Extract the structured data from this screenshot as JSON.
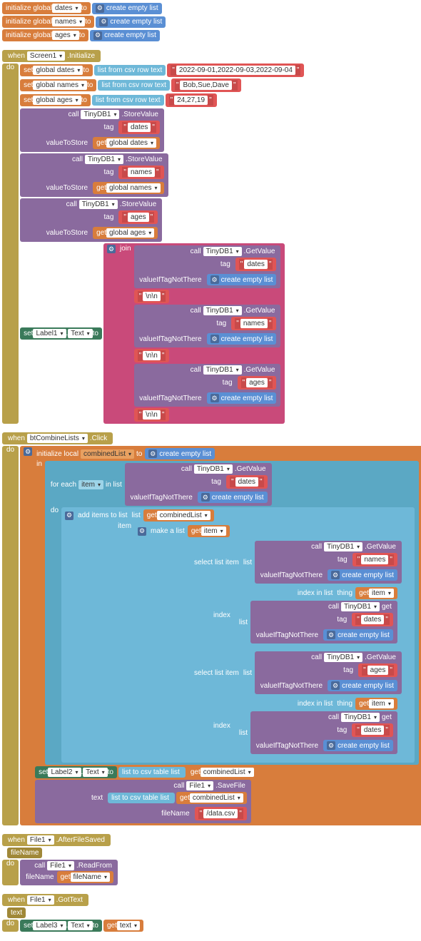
{
  "globals": [
    {
      "name": "dates",
      "to": "to",
      "init": "create empty list"
    },
    {
      "name": "names",
      "to": "to",
      "init": "create empty list"
    },
    {
      "name": "ages",
      "to": "to",
      "init": "create empty list"
    }
  ],
  "init": {
    "when": "when",
    "screen": "Screen1",
    "initialize": ".Initialize",
    "do": "do",
    "sets": [
      {
        "var": "global dates",
        "to": "to",
        "fn": "list from csv row text",
        "val": "2022-09-01,2022-09-03,2022-09-04"
      },
      {
        "var": "global names",
        "to": "to",
        "fn": "list from csv row text",
        "val": "Bob,Sue,Dave"
      },
      {
        "var": "global ages",
        "to": "to",
        "fn": "list from csv row text",
        "val": "24,27,19"
      }
    ],
    "stores": [
      {
        "call": "call",
        "db": "TinyDB1",
        "store": ".StoreValue",
        "tag": "dates",
        "get": "get",
        "var": "global dates"
      },
      {
        "call": "call",
        "db": "TinyDB1",
        "store": ".StoreValue",
        "tag": "names",
        "get": "get",
        "var": "global names"
      },
      {
        "call": "call",
        "db": "TinyDB1",
        "store": ".StoreValue",
        "tag": "ages",
        "get": "get",
        "var": "global ages"
      }
    ],
    "setLabel": {
      "set": "set",
      "label": "Label1",
      "prop": "Text",
      "to": "to",
      "join": "join",
      "items": [
        {
          "call": "call",
          "db": "TinyDB1",
          "get": ".GetValue",
          "tag": "dates",
          "vint": "valueIfTagNotThere",
          "empty": "create empty list"
        },
        {
          "str": "\\n\\n"
        },
        {
          "call": "call",
          "db": "TinyDB1",
          "get": ".GetValue",
          "tag": "names",
          "vint": "valueIfTagNotThere",
          "empty": "create empty list"
        },
        {
          "str": "\\n\\n"
        },
        {
          "call": "call",
          "db": "TinyDB1",
          "get": ".GetValue",
          "tag": "ages",
          "vint": "valueIfTagNotThere",
          "empty": "create empty list"
        },
        {
          "str": "\\n\\n"
        }
      ]
    }
  },
  "combine": {
    "when": "when",
    "btn": "btCombineLists",
    "click": ".Click",
    "do": "do",
    "initLocal": {
      "label": "initialize local",
      "var": "combinedList",
      "to": "to",
      "empty": "create empty list"
    },
    "in": "in",
    "foreach": {
      "label": "for each",
      "var": "item",
      "inlist": "in list",
      "list": {
        "call": "call",
        "db": "TinyDB1",
        "get": ".GetValue",
        "tag": "dates",
        "vint": "valueIfTagNotThere",
        "empty": "create empty list"
      }
    },
    "do2": "do",
    "add": {
      "label": "add items to list",
      "listlbl": "list",
      "get": "get",
      "var": "combinedList"
    },
    "item": "item",
    "make": {
      "label": "make a list",
      "get": "get",
      "var": "item"
    },
    "selects": [
      {
        "sel": "select list item",
        "listlbl": "list",
        "call": "call",
        "db": "TinyDB1",
        "get": ".GetValue",
        "tag": "names",
        "vint": "valueIfTagNotThere",
        "empty": "create empty list",
        "idxlbl": "index",
        "idx": {
          "label": "index in list",
          "thing": "thing",
          "get": "get",
          "var": "item",
          "listlbl": "list",
          "call": "call",
          "db": "TinyDB1",
          "get2": ".GetValue",
          "tag": "dates",
          "vint": "valueIfTagNotThere",
          "empty": "create empty list"
        }
      },
      {
        "sel": "select list item",
        "listlbl": "list",
        "call": "call",
        "db": "TinyDB1",
        "get": ".GetValue",
        "tag": "ages",
        "vint": "valueIfTagNotThere",
        "empty": "create empty list",
        "idxlbl": "index",
        "idx": {
          "label": "index in list",
          "thing": "thing",
          "get": "get",
          "var": "item",
          "listlbl": "list",
          "call": "call",
          "db": "TinyDB1",
          "get2": ".GetValue",
          "tag": "dates",
          "vint": "valueIfTagNotThere",
          "empty": "create empty list"
        }
      }
    ],
    "setLabel2": {
      "set": "set",
      "label": "Label2",
      "prop": "Text",
      "to": "to",
      "fn": "list to csv table",
      "listlbl": "list",
      "get": "get",
      "var": "combinedList"
    },
    "save": {
      "call": "call",
      "file": "File1",
      "fn": ".SaveFile",
      "textlbl": "text",
      "csvfn": "list to csv table",
      "listlbl": "list",
      "get": "get",
      "var": "combinedList",
      "fnlbl": "fileName",
      "fname": "/data.csv"
    }
  },
  "after": {
    "when": "when",
    "file": "File1",
    "fn": ".AfterFileSaved",
    "param": "fileName",
    "do": "do",
    "call": "call",
    "file2": "File1",
    "read": ".ReadFrom",
    "fnlbl": "fileName",
    "get": "get",
    "var": "fileName"
  },
  "got": {
    "when": "when",
    "file": "File1",
    "fn": ".GotText",
    "param": "text",
    "do": "do",
    "set": "set",
    "label": "Label3",
    "prop": "Text",
    "to": "to",
    "get": "get",
    "var": "text"
  },
  "labels": {
    "initialize": "initialize global",
    "set": "set",
    "tag": "tag",
    "valueToStore": "valueToStore",
    "call": "call"
  }
}
